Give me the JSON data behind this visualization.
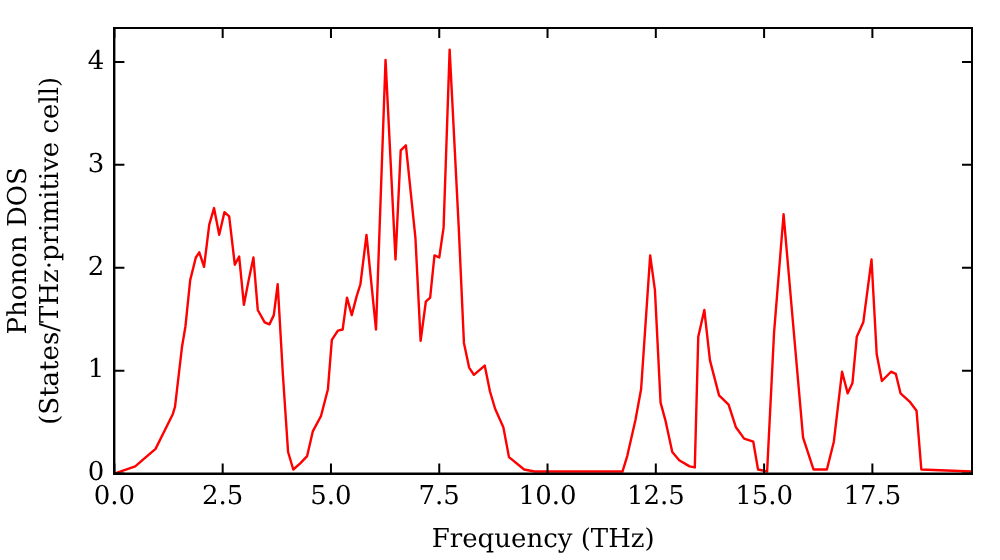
{
  "chart_data": {
    "type": "line",
    "xlabel": "Frequency (THz)",
    "ylabel": "Phonon DOS\n(States/THz·primitive cell)",
    "x": [
      0,
      0.48,
      0.95,
      1.35,
      1.4,
      1.56,
      1.64,
      1.75,
      1.88,
      1.96,
      2.07,
      2.19,
      2.3,
      2.42,
      2.54,
      2.65,
      2.78,
      2.88,
      2.99,
      3.1,
      3.21,
      3.31,
      3.47,
      3.58,
      3.68,
      3.77,
      3.89,
      4.01,
      4.13,
      4.29,
      4.45,
      4.58,
      4.77,
      4.93,
      5.02,
      5.16,
      5.27,
      5.37,
      5.48,
      5.59,
      5.68,
      5.82,
      6.04,
      6.26,
      6.49,
      6.61,
      6.73,
      6.95,
      7.07,
      7.19,
      7.29,
      7.39,
      7.5,
      7.6,
      7.74,
      7.95,
      8.07,
      8.19,
      8.3,
      8.55,
      8.67,
      8.79,
      8.98,
      9.11,
      9.46,
      9.7,
      11.73,
      11.84,
      12.03,
      12.16,
      12.37,
      12.48,
      12.61,
      12.72,
      12.88,
      13.04,
      13.28,
      13.4,
      13.48,
      13.62,
      13.75,
      13.96,
      14.18,
      14.35,
      14.54,
      14.75,
      14.86,
      15.07,
      15.23,
      15.45,
      15.66,
      15.9,
      16.14,
      16.45,
      16.61,
      16.8,
      16.93,
      17.04,
      17.14,
      17.29,
      17.48,
      17.6,
      17.72,
      17.93,
      18.04,
      18.15,
      18.36,
      18.52,
      18.63,
      19.79
    ],
    "values": [
      0,
      0.07,
      0.24,
      0.58,
      0.65,
      1.23,
      1.43,
      1.88,
      2.1,
      2.15,
      2.01,
      2.42,
      2.58,
      2.32,
      2.54,
      2.5,
      2.03,
      2.11,
      1.64,
      1.88,
      2.1,
      1.59,
      1.47,
      1.45,
      1.54,
      1.84,
      0.96,
      0.21,
      0.04,
      0.1,
      0.17,
      0.41,
      0.56,
      0.82,
      1.3,
      1.39,
      1.4,
      1.71,
      1.54,
      1.72,
      1.84,
      2.32,
      1.4,
      4.02,
      2.08,
      3.14,
      3.19,
      2.29,
      1.29,
      1.67,
      1.71,
      2.12,
      2.1,
      2.39,
      4.12,
      2.39,
      1.27,
      1.03,
      0.96,
      1.05,
      0.8,
      0.63,
      0.45,
      0.16,
      0.04,
      0.02,
      0.02,
      0.17,
      0.52,
      0.82,
      2.12,
      1.78,
      0.69,
      0.52,
      0.21,
      0.13,
      0.07,
      0.06,
      1.33,
      1.59,
      1.1,
      0.76,
      0.67,
      0.45,
      0.34,
      0.31,
      0.04,
      0.02,
      1.37,
      2.52,
      1.5,
      0.35,
      0.04,
      0.04,
      0.31,
      0.99,
      0.78,
      0.88,
      1.33,
      1.47,
      2.08,
      1.16,
      0.9,
      0.99,
      0.97,
      0.78,
      0.7,
      0.61,
      0.04,
      0.02
    ],
    "color": "#ff0000",
    "marker": "none",
    "line_style": "solid",
    "grid": false,
    "legend": false,
    "xlim": [
      0,
      19.8
    ],
    "ylim": [
      0,
      4.33
    ],
    "xticks": [
      {
        "value": 0,
        "label": "0.0"
      },
      {
        "value": 2.5,
        "label": "2.5"
      },
      {
        "value": 5,
        "label": "5.0"
      },
      {
        "value": 7.5,
        "label": "7.5"
      },
      {
        "value": 10,
        "label": "10.0"
      },
      {
        "value": 12.5,
        "label": "12.5"
      },
      {
        "value": 15,
        "label": "15.0"
      },
      {
        "value": 17.5,
        "label": "17.5"
      }
    ],
    "yticks": [
      0,
      1,
      2,
      3,
      4
    ]
  }
}
